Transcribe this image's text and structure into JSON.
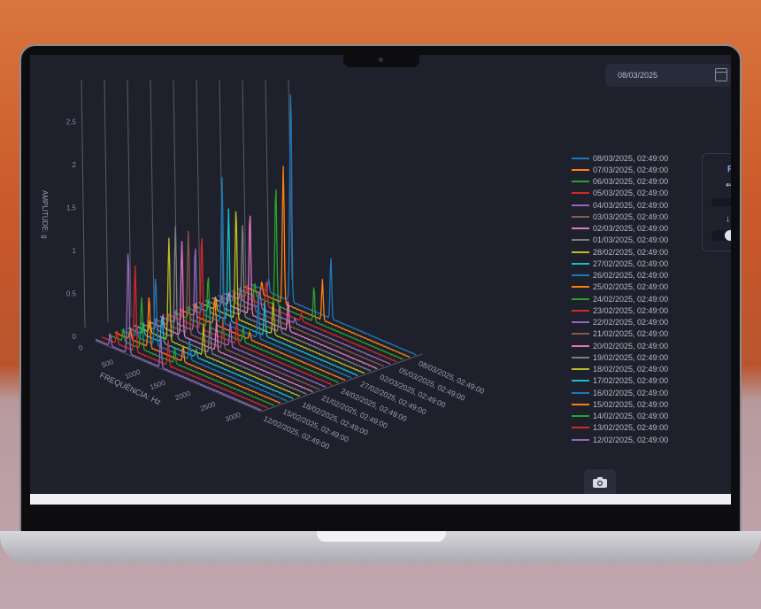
{
  "date_picker": {
    "value": "08/03/2025",
    "icon": "calendar-icon"
  },
  "panel": {
    "label": "F"
  },
  "snapshot_icon": "camera-icon",
  "chart_data": {
    "type": "3d-waterfall-line",
    "xlabel": "FREQUÊNCIA: Hz",
    "zlabel": "AMPLITUDE: g",
    "x_ticks": [
      "0",
      "500",
      "1000",
      "1500",
      "2000",
      "2500",
      "3000"
    ],
    "z_ticks": [
      "0",
      "0.5",
      "1",
      "1.5",
      "2",
      "2.5"
    ],
    "xlim": [
      0,
      3300
    ],
    "zlim": [
      0,
      2.7
    ],
    "y_tick_labels": [
      "12/02/2025, 02:49:00",
      "15/02/2025, 02:49:00",
      "18/02/2025, 02:49:00",
      "21/02/2025, 02:49:00",
      "24/02/2025, 02:49:00",
      "27/02/2025, 02:49:00",
      "02/03/2025, 02:49:00",
      "05/03/2025, 02:49:00",
      "08/03/2025, 02:49:00"
    ],
    "legend_position": "right",
    "series": [
      {
        "name": "08/03/2025, 02:49:00",
        "color": "#1f77b4",
        "peak_hz": 800,
        "peak_amp": 2.5
      },
      {
        "name": "07/03/2025, 02:49:00",
        "color": "#ff7f0e",
        "peak_hz": 780,
        "peak_amp": 1.6
      },
      {
        "name": "06/03/2025, 02:49:00",
        "color": "#2ca02c",
        "peak_hz": 760,
        "peak_amp": 1.4
      },
      {
        "name": "05/03/2025, 02:49:00",
        "color": "#d62728",
        "peak_hz": 700,
        "peak_amp": 0.3
      },
      {
        "name": "04/03/2025, 02:49:00",
        "color": "#9467bd",
        "peak_hz": 700,
        "peak_amp": 0.2
      },
      {
        "name": "03/03/2025, 02:49:00",
        "color": "#8c564b",
        "peak_hz": 700,
        "peak_amp": 0.2
      },
      {
        "name": "02/03/2025, 02:49:00",
        "color": "#e377c2",
        "peak_hz": 760,
        "peak_amp": 1.2
      },
      {
        "name": "01/03/2025, 02:49:00",
        "color": "#7f7f7f",
        "peak_hz": 740,
        "peak_amp": 1.1
      },
      {
        "name": "28/02/2025, 02:49:00",
        "color": "#bcbd22",
        "peak_hz": 740,
        "peak_amp": 1.3
      },
      {
        "name": "27/02/2025, 02:49:00",
        "color": "#17becf",
        "peak_hz": 720,
        "peak_amp": 1.3
      },
      {
        "name": "26/02/2025, 02:49:00",
        "color": "#1f77b4",
        "peak_hz": 720,
        "peak_amp": 1.7
      },
      {
        "name": "25/02/2025, 02:49:00",
        "color": "#ff7f0e",
        "peak_hz": 700,
        "peak_amp": 0.3
      },
      {
        "name": "24/02/2025, 02:49:00",
        "color": "#2ca02c",
        "peak_hz": 700,
        "peak_amp": 0.6
      },
      {
        "name": "23/02/2025, 02:49:00",
        "color": "#d62728",
        "peak_hz": 700,
        "peak_amp": 1.1
      },
      {
        "name": "22/02/2025, 02:49:00",
        "color": "#9467bd",
        "peak_hz": 700,
        "peak_amp": 1.0
      },
      {
        "name": "21/02/2025, 02:49:00",
        "color": "#8c564b",
        "peak_hz": 690,
        "peak_amp": 1.2
      },
      {
        "name": "20/02/2025, 02:49:00",
        "color": "#e377c2",
        "peak_hz": 690,
        "peak_amp": 1.1
      },
      {
        "name": "19/02/2025, 02:49:00",
        "color": "#7f7f7f",
        "peak_hz": 690,
        "peak_amp": 1.3
      },
      {
        "name": "18/02/2025, 02:49:00",
        "color": "#bcbd22",
        "peak_hz": 690,
        "peak_amp": 1.2
      },
      {
        "name": "17/02/2025, 02:49:00",
        "color": "#17becf",
        "peak_hz": 680,
        "peak_amp": 0.3
      },
      {
        "name": "16/02/2025, 02:49:00",
        "color": "#1f77b4",
        "peak_hz": 680,
        "peak_amp": 0.8
      },
      {
        "name": "15/02/2025, 02:49:00",
        "color": "#ff7f0e",
        "peak_hz": 680,
        "peak_amp": 0.6
      },
      {
        "name": "14/02/2025, 02:49:00",
        "color": "#2ca02c",
        "peak_hz": 660,
        "peak_amp": 0.6
      },
      {
        "name": "13/02/2025, 02:49:00",
        "color": "#d62728",
        "peak_hz": 660,
        "peak_amp": 1.0
      },
      {
        "name": "12/02/2025, 02:49:00",
        "color": "#9467bd",
        "peak_hz": 650,
        "peak_amp": 1.2
      }
    ]
  }
}
